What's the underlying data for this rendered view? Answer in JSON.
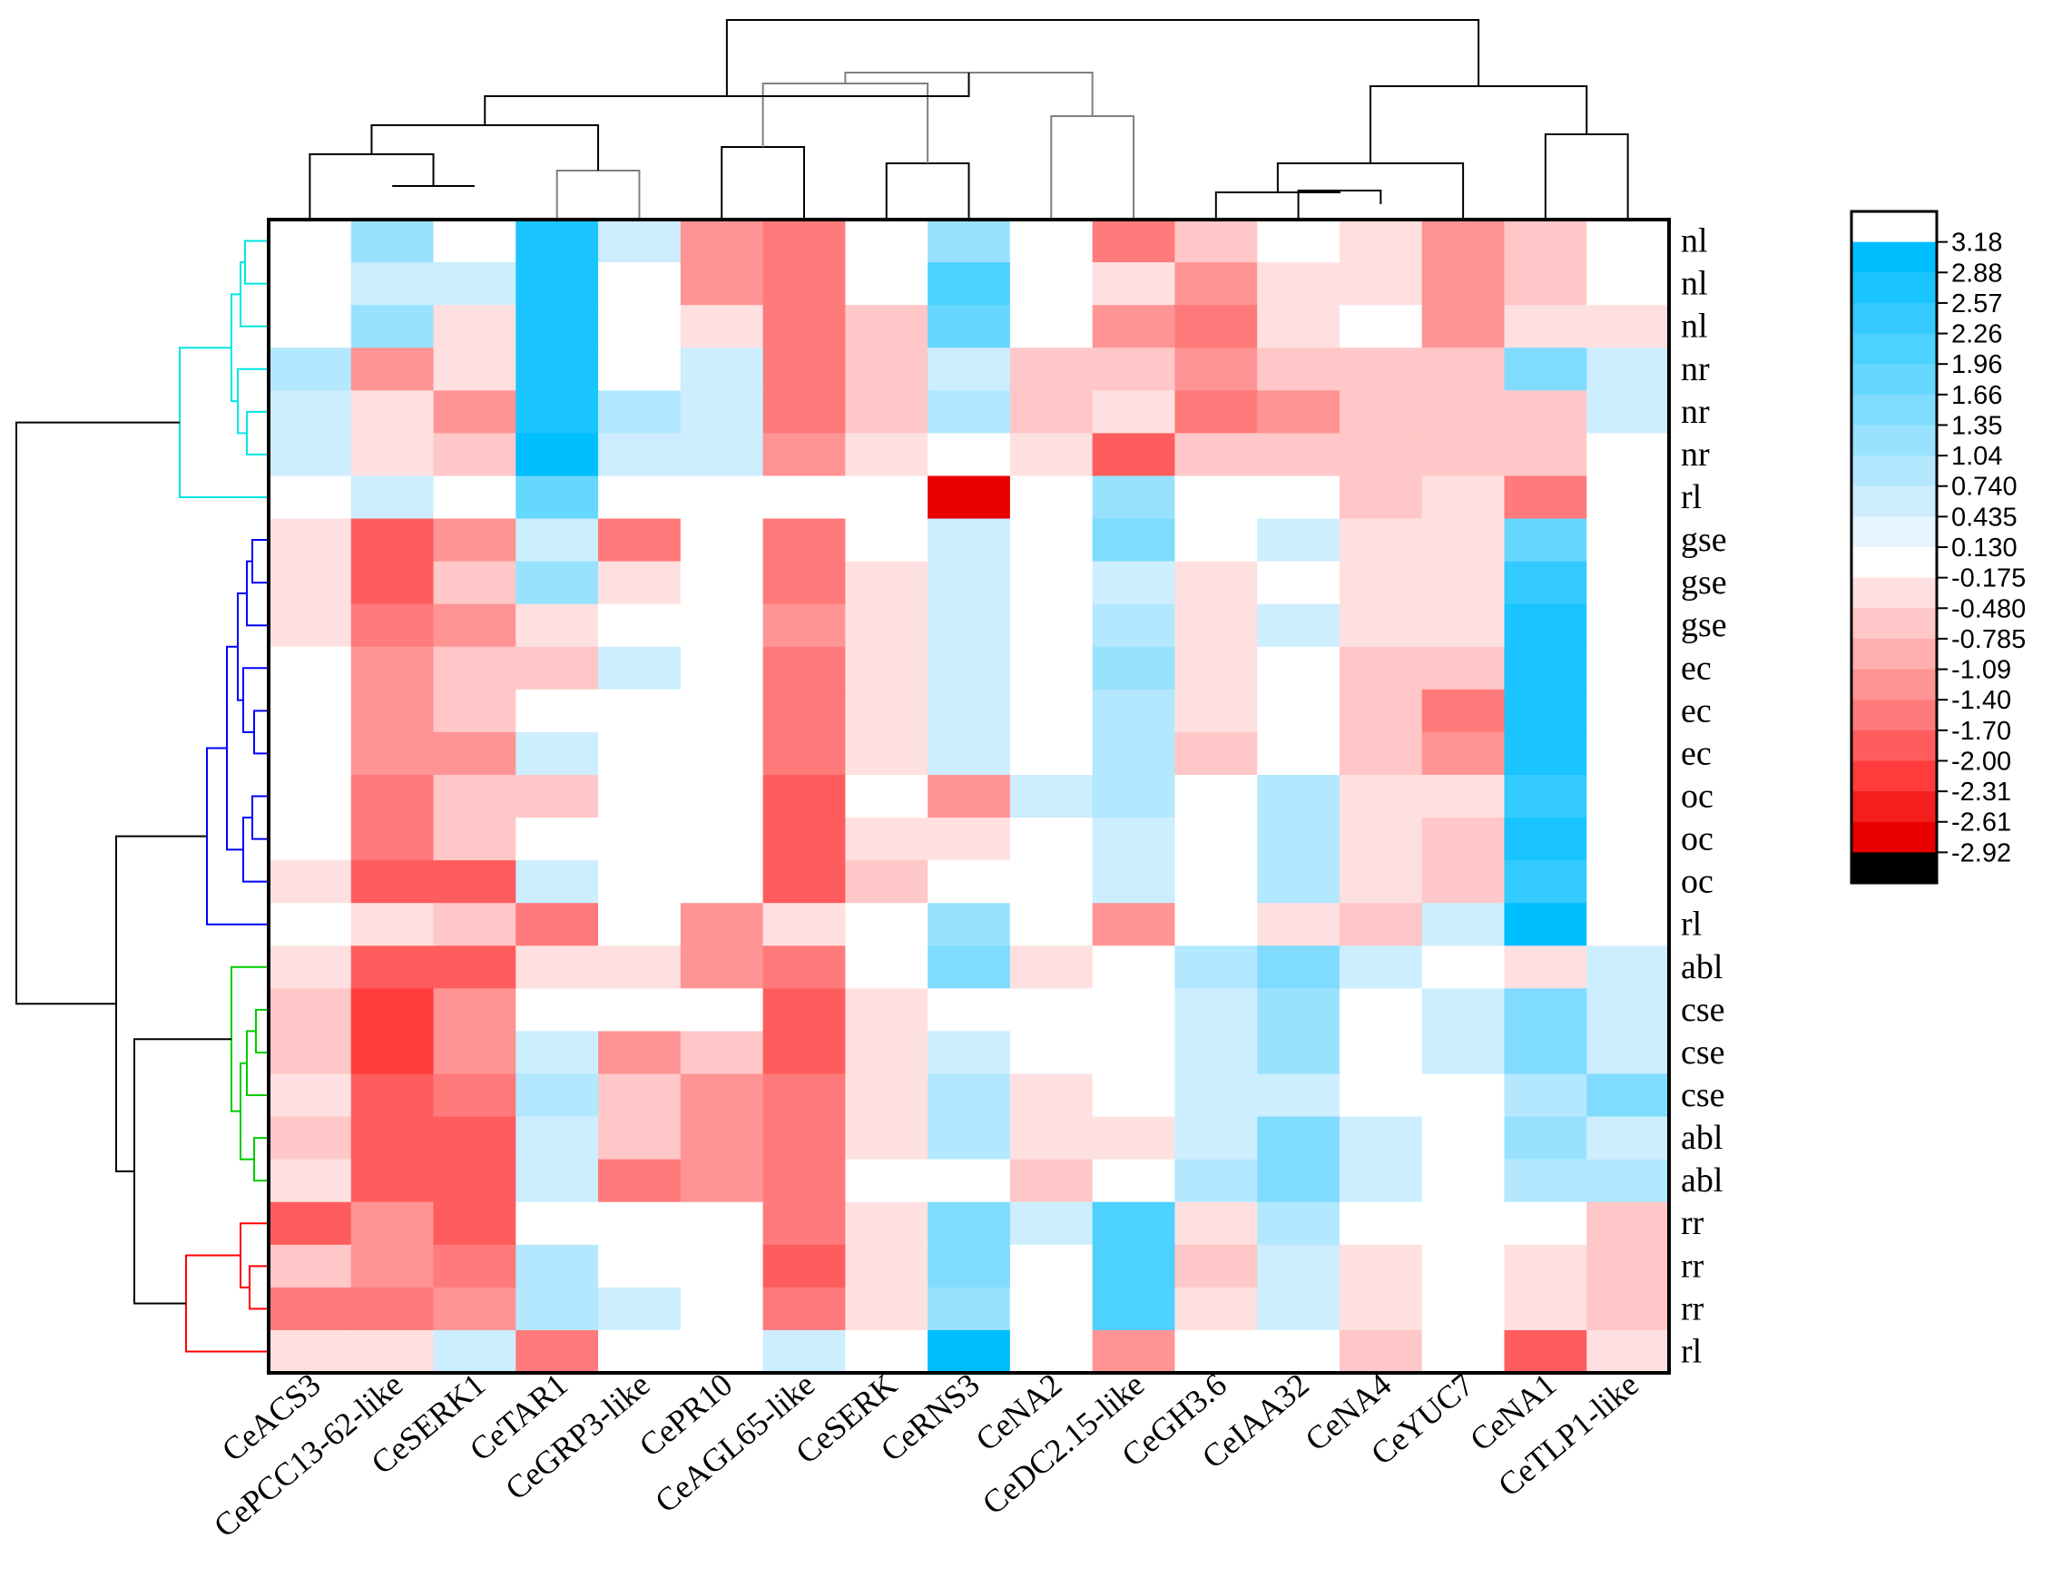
{
  "chart_data": {
    "type": "heatmap",
    "title": "",
    "columns": [
      "CeACS3",
      "CePCC13-62-like",
      "CeSERK1",
      "CeTAR1",
      "CeGRP3-like",
      "CePR10",
      "CeAGL65-like",
      "CeSERK",
      "CeRNS3",
      "CeNA2",
      "CeDC2.15-like",
      "CeGH3.6",
      "CeIAA32",
      "CeNA4",
      "CeYUC7",
      "CeNA1",
      "CeTLP1-like"
    ],
    "rows": [
      "nl",
      "nl",
      "nl",
      "nr",
      "nr",
      "nr",
      "rl",
      "gse",
      "gse",
      "gse",
      "ec",
      "ec",
      "ec",
      "oc",
      "oc",
      "oc",
      "rl",
      "abl",
      "cse",
      "cse",
      "cse",
      "abl",
      "abl",
      "rr",
      "rr",
      "rr",
      "rl"
    ],
    "values": [
      [
        0.13,
        1.35,
        0.13,
        2.88,
        0.44,
        -1.09,
        -1.4,
        0.13,
        1.35,
        0.13,
        -1.4,
        -0.48,
        0.13,
        -0.18,
        -1.09,
        -0.48,
        0.13
      ],
      [
        0.13,
        0.44,
        0.44,
        2.88,
        0.13,
        -1.09,
        -1.4,
        0.13,
        2.26,
        0.13,
        -0.18,
        -1.09,
        -0.18,
        -0.18,
        -1.09,
        -0.48,
        0.13
      ],
      [
        0.13,
        1.35,
        -0.18,
        2.88,
        0.13,
        -0.18,
        -1.4,
        -0.48,
        1.96,
        0.13,
        -1.09,
        -1.4,
        -0.18,
        0.13,
        -1.09,
        -0.18,
        -0.18
      ],
      [
        1.04,
        -1.09,
        -0.18,
        2.88,
        0.13,
        0.74,
        -1.4,
        -0.48,
        0.44,
        -0.78,
        -0.78,
        -1.09,
        -0.78,
        -0.78,
        -0.78,
        1.66,
        0.44
      ],
      [
        0.44,
        -0.18,
        -1.09,
        2.88,
        1.04,
        0.74,
        -1.4,
        -0.48,
        1.04,
        -0.78,
        -0.18,
        -1.4,
        -1.09,
        -0.48,
        -0.48,
        -0.48,
        0.74
      ],
      [
        0.74,
        -0.18,
        -0.78,
        3.18,
        0.74,
        0.44,
        -1.09,
        -0.18,
        0.13,
        -0.18,
        -1.7,
        -0.78,
        -0.48,
        -0.48,
        -0.48,
        -0.48,
        0.13
      ],
      [
        0.13,
        0.44,
        0.13,
        1.96,
        0.13,
        0.13,
        0.13,
        0.13,
        -2.61,
        0.13,
        1.35,
        0.13,
        0.13,
        -0.48,
        -0.18,
        -1.4,
        0.13
      ],
      [
        -0.18,
        -1.7,
        -1.09,
        0.44,
        -1.4,
        0.13,
        -1.4,
        0.13,
        0.74,
        0.13,
        1.66,
        0.13,
        0.44,
        -0.18,
        -0.18,
        1.96,
        0.13
      ],
      [
        -0.18,
        -1.7,
        -0.78,
        1.35,
        -0.18,
        0.13,
        -1.4,
        -0.18,
        0.74,
        0.13,
        0.74,
        -0.18,
        0.13,
        -0.18,
        -0.18,
        2.57,
        0.13
      ],
      [
        -0.18,
        -1.4,
        -1.09,
        -0.18,
        0.13,
        0.13,
        -1.09,
        -0.18,
        0.74,
        0.13,
        1.04,
        -0.18,
        0.44,
        -0.18,
        -0.18,
        2.88,
        0.13
      ],
      [
        0.13,
        -1.09,
        -0.48,
        -0.48,
        0.44,
        0.13,
        -1.4,
        -0.18,
        0.74,
        0.13,
        1.35,
        -0.18,
        0.13,
        -0.48,
        -0.48,
        2.88,
        0.13
      ],
      [
        0.13,
        -1.09,
        -0.48,
        0.13,
        0.13,
        0.13,
        -1.4,
        -0.18,
        0.44,
        0.13,
        1.04,
        -0.18,
        0.13,
        -0.48,
        -1.4,
        2.88,
        0.13
      ],
      [
        0.13,
        -1.09,
        -1.09,
        0.44,
        0.13,
        0.13,
        -1.4,
        -0.18,
        0.74,
        0.13,
        1.04,
        -0.78,
        0.13,
        -0.48,
        -1.09,
        2.88,
        0.13
      ],
      [
        0.13,
        -1.4,
        -0.48,
        -0.48,
        0.13,
        0.13,
        -1.7,
        0.13,
        -1.09,
        0.44,
        1.04,
        0.13,
        1.04,
        -0.18,
        -0.18,
        2.57,
        0.13
      ],
      [
        0.13,
        -1.4,
        -0.48,
        0.13,
        0.13,
        0.13,
        -1.7,
        -0.18,
        -0.18,
        0.13,
        0.74,
        0.13,
        1.04,
        -0.18,
        -0.48,
        2.88,
        0.13
      ],
      [
        -0.18,
        -1.7,
        -1.7,
        0.44,
        0.13,
        0.13,
        -1.7,
        -0.48,
        0.13,
        0.13,
        0.74,
        0.13,
        1.04,
        -0.18,
        -0.48,
        2.57,
        0.13
      ],
      [
        0.13,
        -0.18,
        -0.78,
        -1.4,
        0.13,
        -1.09,
        -0.18,
        0.13,
        1.35,
        0.13,
        -1.09,
        0.13,
        -0.18,
        -0.48,
        0.44,
        3.18,
        0.13
      ],
      [
        -0.18,
        -1.7,
        -1.7,
        -0.18,
        -0.18,
        -1.09,
        -1.4,
        0.13,
        1.66,
        -0.18,
        0.13,
        1.04,
        1.66,
        0.44,
        0.13,
        -0.18,
        0.74
      ],
      [
        -0.48,
        -2.0,
        -1.09,
        0.13,
        0.13,
        0.13,
        -1.7,
        -0.18,
        0.13,
        0.13,
        0.13,
        0.44,
        1.35,
        0.13,
        0.74,
        1.66,
        0.44
      ],
      [
        -0.48,
        -2.0,
        -1.09,
        0.44,
        -1.09,
        -0.78,
        -1.7,
        -0.18,
        0.74,
        0.13,
        0.13,
        0.44,
        1.35,
        0.13,
        0.44,
        1.66,
        0.44
      ],
      [
        -0.18,
        -1.7,
        -1.4,
        1.04,
        -0.78,
        -1.09,
        -1.4,
        -0.18,
        1.04,
        -0.18,
        0.13,
        0.44,
        0.74,
        0.13,
        0.13,
        1.04,
        1.66
      ],
      [
        -0.48,
        -1.7,
        -1.7,
        0.74,
        -0.78,
        -1.09,
        -1.4,
        -0.18,
        1.04,
        -0.18,
        -0.18,
        0.74,
        1.66,
        0.44,
        0.13,
        1.35,
        0.74
      ],
      [
        -0.18,
        -1.7,
        -1.7,
        0.74,
        -1.4,
        -1.09,
        -1.4,
        0.13,
        0.13,
        -0.48,
        0.13,
        1.04,
        1.66,
        0.44,
        0.13,
        1.04,
        1.04
      ],
      [
        -1.7,
        -1.09,
        -1.7,
        0.13,
        0.13,
        0.13,
        -1.4,
        -0.18,
        1.66,
        0.44,
        2.26,
        -0.18,
        1.04,
        0.13,
        0.13,
        0.13,
        -0.78
      ],
      [
        -0.48,
        -1.09,
        -1.4,
        1.04,
        0.13,
        0.13,
        -1.7,
        -0.18,
        1.66,
        0.13,
        2.26,
        -0.48,
        0.74,
        -0.18,
        0.13,
        -0.18,
        -0.78
      ],
      [
        -1.4,
        -1.4,
        -1.09,
        1.04,
        0.44,
        0.13,
        -1.4,
        -0.18,
        1.35,
        0.13,
        2.26,
        -0.18,
        0.74,
        -0.18,
        0.13,
        -0.18,
        -0.78
      ],
      [
        -0.18,
        -0.18,
        0.44,
        -1.4,
        0.13,
        0.13,
        0.44,
        0.13,
        3.18,
        0.13,
        -1.09,
        0.13,
        0.13,
        -0.48,
        0.13,
        -1.7,
        -0.18
      ]
    ],
    "legend": {
      "ticks": [
        "3.18",
        "2.88",
        "2.57",
        "2.26",
        "1.96",
        "1.66",
        "1.35",
        "1.04",
        "0.740",
        "0.435",
        "0.130",
        "-0.175",
        "-0.480",
        "-0.785",
        "-1.09",
        "-1.40",
        "-1.70",
        "-2.00",
        "-2.31",
        "-2.61",
        "-2.92"
      ],
      "colors": [
        "#ffffff",
        "#00bfff",
        "#1ac5ff",
        "#33cbff",
        "#4dd1ff",
        "#66d7ff",
        "#80dcff",
        "#99e2ff",
        "#b3e8ff",
        "#cceeff",
        "#e6f6ff",
        "#ffffff",
        "#ffe0e0",
        "#ffc7c7",
        "#ffaeae",
        "#ff9494",
        "#ff7a7a",
        "#ff5d5d",
        "#ff3b3b",
        "#f51e1e",
        "#e80000",
        "#000000"
      ]
    },
    "colors": {
      "cyan_cluster": "#00e5e5",
      "blue_cluster": "#0000ff",
      "green_cluster": "#00cc00",
      "red_cluster": "#ff0000",
      "tree": "#000000",
      "grey_tree": "#808080"
    }
  }
}
